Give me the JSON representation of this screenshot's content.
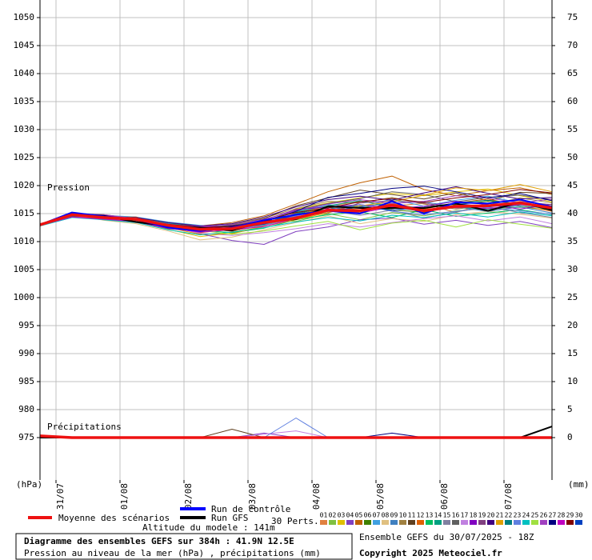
{
  "chart_data": {
    "type": "line",
    "title": "Diagramme des ensembles GEFS sur 384h : 41.9N 12.5E",
    "subtitle": "Pression au niveau de la mer (hPa) , précipitations (mm)",
    "run_info": "Ensemble GEFS du 30/07/2025 - 18Z",
    "copyright": "Copyright 2025 Meteociel.fr",
    "altitude": "Altitude du modele : 141m",
    "pressure_label": "Pression",
    "precip_label": "Précipitations",
    "y_unit": "(hPa)",
    "y2_unit": "(mm)",
    "perts_label": "30 Perts.",
    "grid": true,
    "x": [
      0,
      12,
      24,
      36,
      48,
      60,
      72,
      84,
      96,
      108,
      120,
      132,
      144,
      156,
      168,
      180,
      192
    ],
    "xlim": [
      0,
      192
    ],
    "xticks": [
      {
        "value": 6,
        "label": "31/07"
      },
      {
        "value": 30,
        "label": "01/08"
      },
      {
        "value": 54,
        "label": "02/08"
      },
      {
        "value": 78,
        "label": "03/08"
      },
      {
        "value": 102,
        "label": "04/08"
      },
      {
        "value": 126,
        "label": "05/08"
      },
      {
        "value": 150,
        "label": "06/08"
      },
      {
        "value": 174,
        "label": "07/08"
      }
    ],
    "ylim": [
      967.43,
      1053.14
    ],
    "yticks": [
      975,
      980,
      985,
      990,
      995,
      1000,
      1005,
      1010,
      1015,
      1020,
      1025,
      1030,
      1035,
      1040,
      1045,
      1050
    ],
    "y2lim": [
      -7.57,
      78.14
    ],
    "y2ticks": [
      0,
      5,
      10,
      15,
      20,
      25,
      30,
      35,
      40,
      45,
      50,
      55,
      60,
      65,
      70,
      75
    ],
    "series": [
      {
        "name": "01",
        "color": "#e08040",
        "width": 1,
        "values": [
          1013,
          1014.5,
          1014,
          1014.2,
          1013.4,
          1012.6,
          1011.8,
          1012.9,
          1015.1,
          1016.3,
          1017.2,
          1016.4,
          1016.8,
          1015.2,
          1016.9,
          1017.3,
          1016.4
        ]
      },
      {
        "name": "02",
        "color": "#80c040",
        "width": 1,
        "values": [
          1012.8,
          1014.9,
          1014.6,
          1013.7,
          1012.5,
          1011.7,
          1012.9,
          1013.8,
          1013.6,
          1015,
          1013.9,
          1015.2,
          1014.6,
          1015.5,
          1015.9,
          1016.1,
          1015.7
        ]
      },
      {
        "name": "03",
        "color": "#e0c000",
        "width": 1,
        "values": [
          1013.1,
          1015,
          1014.2,
          1013.8,
          1012.2,
          1010.9,
          1011.5,
          1012.8,
          1015.8,
          1016.9,
          1017.8,
          1018.6,
          1018.2,
          1018.9,
          1019.4,
          1018.2,
          1017.1
        ]
      },
      {
        "name": "04",
        "color": "#8040c0",
        "width": 1,
        "values": [
          1013,
          1014.6,
          1013.9,
          1013.5,
          1012.9,
          1011.4,
          1010.2,
          1009.5,
          1011.8,
          1012.6,
          1013.9,
          1014.2,
          1013.1,
          1013.8,
          1012.9,
          1013.6,
          1012.5
        ],
        "precip": [
          0,
          0,
          0,
          0,
          0,
          0,
          0,
          0.8,
          0,
          0,
          0,
          0,
          0,
          0,
          0,
          0,
          0
        ]
      },
      {
        "name": "05",
        "color": "#c06000",
        "width": 1,
        "values": [
          1013.2,
          1014.7,
          1014.5,
          1014.3,
          1013.1,
          1012.8,
          1013.4,
          1014.6,
          1016.7,
          1018.9,
          1020.5,
          1021.7,
          1019.3,
          1018.2,
          1019.1,
          1019.6,
          1018.4
        ]
      },
      {
        "name": "06",
        "color": "#408000",
        "width": 1,
        "values": [
          1012.9,
          1014.4,
          1014.1,
          1013.6,
          1012.6,
          1012.1,
          1012.6,
          1013.2,
          1014.9,
          1015.8,
          1016.4,
          1015.7,
          1015.2,
          1016.6,
          1017.2,
          1016.8,
          1016.3
        ]
      },
      {
        "name": "07",
        "color": "#40a0e0",
        "width": 1,
        "values": [
          1013,
          1015.1,
          1014.7,
          1014.4,
          1013.5,
          1012.9,
          1012.4,
          1013.5,
          1015.4,
          1016.6,
          1016.1,
          1017.6,
          1016.3,
          1017.4,
          1018.1,
          1016.9,
          1015.8
        ]
      },
      {
        "name": "08",
        "color": "#e0c080",
        "width": 1,
        "values": [
          1013.1,
          1014.8,
          1013.8,
          1013.2,
          1011.9,
          1010.3,
          1010.8,
          1012.1,
          1013.4,
          1014.6,
          1013.2,
          1014.1,
          1013.6,
          1014.8,
          1015.4,
          1014.9,
          1014.2
        ]
      },
      {
        "name": "09",
        "color": "#4080c0",
        "width": 1,
        "values": [
          1012.8,
          1014.3,
          1014.4,
          1013.9,
          1013,
          1012.4,
          1012.1,
          1013,
          1014.4,
          1015.2,
          1016.2,
          1016.9,
          1017.1,
          1016.2,
          1015.4,
          1016.2,
          1015.1
        ]
      },
      {
        "name": "10",
        "color": "#a08040",
        "width": 1,
        "values": [
          1013,
          1014.9,
          1014.8,
          1014.1,
          1012.7,
          1012.3,
          1013.1,
          1014.2,
          1015.9,
          1017.2,
          1016.9,
          1017.9,
          1016.7,
          1015.8,
          1016.5,
          1017.8,
          1016.9
        ]
      },
      {
        "name": "11",
        "color": "#604020",
        "width": 1,
        "values": [
          1013.1,
          1014.6,
          1014.2,
          1013.9,
          1013.2,
          1012.7,
          1012.9,
          1014.1,
          1016.4,
          1017.8,
          1019.2,
          1018.4,
          1017.6,
          1018.7,
          1017.3,
          1018.8,
          1018.6
        ],
        "precip": [
          0,
          0,
          0,
          0,
          0,
          0,
          1.5,
          0,
          0,
          0,
          0,
          0,
          0,
          0,
          0,
          0,
          0
        ]
      },
      {
        "name": "12",
        "color": "#e06000",
        "width": 1,
        "values": [
          1012.9,
          1015.2,
          1014.3,
          1014.4,
          1012.8,
          1011.6,
          1012.2,
          1013.3,
          1014.7,
          1016.1,
          1015.7,
          1016.8,
          1015.8,
          1016.9,
          1017.6,
          1016.4,
          1015.4
        ]
      },
      {
        "name": "13",
        "color": "#00c060",
        "width": 1,
        "values": [
          1013,
          1014.7,
          1014,
          1013.7,
          1012.4,
          1012,
          1011.6,
          1012.4,
          1013.9,
          1014.8,
          1015.3,
          1014.3,
          1015.7,
          1014.5,
          1015.1,
          1015.7,
          1014.8
        ]
      },
      {
        "name": "14",
        "color": "#00a080",
        "width": 1,
        "values": [
          1013.1,
          1014.5,
          1014.6,
          1014,
          1013.3,
          1012.5,
          1012.8,
          1013.7,
          1015.3,
          1016.4,
          1017.3,
          1016.1,
          1015.4,
          1016.1,
          1015.8,
          1016.4,
          1015.9
        ]
      },
      {
        "name": "15",
        "color": "#8080a0",
        "width": 1,
        "values": [
          1012.8,
          1014.8,
          1014.1,
          1013.6,
          1012.6,
          1011.9,
          1012.3,
          1012.9,
          1014.2,
          1015.5,
          1014.7,
          1015.6,
          1014.2,
          1015.3,
          1016.2,
          1015.2,
          1014.3
        ]
      },
      {
        "name": "16",
        "color": "#606060",
        "width": 1,
        "values": [
          1013,
          1015,
          1014.5,
          1014.2,
          1013,
          1012.3,
          1011.9,
          1013.6,
          1015.6,
          1016.8,
          1017.7,
          1018.9,
          1018.4,
          1017.1,
          1017.9,
          1018.3,
          1017.5
        ]
      },
      {
        "name": "17",
        "color": "#c080e0",
        "width": 1,
        "values": [
          1013.2,
          1014.4,
          1014.3,
          1013.8,
          1012.7,
          1011.5,
          1011.1,
          1011.6,
          1012.3,
          1013.2,
          1012.6,
          1013.4,
          1014.1,
          1014.6,
          1013.7,
          1014.4,
          1013.2
        ],
        "precip": [
          0,
          0,
          0,
          0,
          0,
          0,
          0,
          0.6,
          1.2,
          0,
          0,
          0,
          0,
          0,
          0,
          0,
          0
        ]
      },
      {
        "name": "18",
        "color": "#8000c0",
        "width": 1,
        "values": [
          1012.9,
          1014.6,
          1014.7,
          1014.1,
          1013.1,
          1012.6,
          1012.7,
          1013.9,
          1015.7,
          1016.2,
          1016.6,
          1015.9,
          1016.3,
          1017.2,
          1016.6,
          1015.8,
          1016.7
        ]
      },
      {
        "name": "19",
        "color": "#804080",
        "width": 1,
        "values": [
          1013,
          1014.9,
          1014,
          1013.5,
          1012.3,
          1011.8,
          1012.4,
          1013.2,
          1014.5,
          1015.1,
          1016.9,
          1017.3,
          1016.9,
          1016,
          1016.3,
          1017.1,
          1016.6
        ]
      },
      {
        "name": "20",
        "color": "#400080",
        "width": 1,
        "values": [
          1013.1,
          1014.7,
          1014.4,
          1014.3,
          1013.4,
          1012.8,
          1013.2,
          1014.4,
          1016.2,
          1017.5,
          1018.1,
          1017.4,
          1018.7,
          1019.8,
          1018.6,
          1017.6,
          1017.9
        ]
      },
      {
        "name": "21",
        "color": "#e0a000",
        "width": 1,
        "values": [
          1012.9,
          1015.1,
          1014.2,
          1013.7,
          1012.5,
          1011.3,
          1011.4,
          1012.7,
          1013.9,
          1015.2,
          1016.4,
          1017.1,
          1018.3,
          1019.6,
          1019.1,
          1020.2,
          1018.9
        ]
      },
      {
        "name": "22",
        "color": "#008080",
        "width": 1,
        "values": [
          1013,
          1014.5,
          1014.6,
          1013.9,
          1012.8,
          1012.1,
          1012.5,
          1013.3,
          1015,
          1016.1,
          1015.4,
          1016.5,
          1015.9,
          1016.9,
          1017.4,
          1016.7,
          1015.9
        ]
      },
      {
        "name": "23",
        "color": "#6080e0",
        "width": 1,
        "values": [
          1013.1,
          1014.8,
          1014.1,
          1014,
          1013.2,
          1012.4,
          1012,
          1013.1,
          1014.6,
          1015.7,
          1016.6,
          1015.4,
          1014.8,
          1015.4,
          1016.1,
          1015.5,
          1014.9
        ],
        "precip": [
          0,
          0,
          0,
          0,
          0,
          0,
          0,
          0,
          3.5,
          0,
          0,
          0,
          0,
          0,
          0,
          0,
          0
        ]
      },
      {
        "name": "24",
        "color": "#00c0c0",
        "width": 1,
        "values": [
          1012.8,
          1014.3,
          1013.9,
          1013.4,
          1012.1,
          1011.2,
          1011.7,
          1012.5,
          1013.5,
          1014.3,
          1013.7,
          1014.7,
          1014.3,
          1015.1,
          1014.4,
          1015.3,
          1014.6
        ]
      },
      {
        "name": "25",
        "color": "#a0e040",
        "width": 1,
        "values": [
          1013,
          1014.6,
          1014.5,
          1014.2,
          1012.9,
          1012,
          1011.3,
          1011.9,
          1012.8,
          1013.6,
          1012.1,
          1013.3,
          1013.8,
          1012.6,
          1013.9,
          1013.1,
          1012.4
        ]
      },
      {
        "name": "26",
        "color": "#a040c0",
        "width": 1,
        "values": [
          1013.1,
          1015,
          1014.8,
          1014.1,
          1013,
          1012.7,
          1013,
          1014,
          1015.5,
          1016.7,
          1017.5,
          1016.8,
          1017.2,
          1018.2,
          1017.8,
          1016.9,
          1017.6
        ]
      },
      {
        "name": "27",
        "color": "#000080",
        "width": 1,
        "values": [
          1013,
          1014.7,
          1014.2,
          1013.8,
          1012.6,
          1012.2,
          1012.8,
          1013.5,
          1015.4,
          1017.9,
          1018.6,
          1019.5,
          1019.9,
          1018.9,
          1017.8,
          1018.6,
          1017.3
        ],
        "precip": [
          0,
          0,
          0,
          0,
          0,
          0,
          0,
          0,
          0,
          0,
          0,
          0.8,
          0,
          0,
          0,
          0,
          0
        ]
      },
      {
        "name": "28",
        "color": "#c000c0",
        "width": 1,
        "values": [
          1012.9,
          1014.4,
          1014,
          1013.6,
          1012.4,
          1011.7,
          1012.1,
          1012.7,
          1014.1,
          1015.9,
          1015.1,
          1016.2,
          1015.6,
          1016.4,
          1015.9,
          1016.6,
          1016.1
        ]
      },
      {
        "name": "29",
        "color": "#800000",
        "width": 1,
        "values": [
          1013,
          1014.9,
          1014.4,
          1014,
          1013.1,
          1012.5,
          1012.7,
          1013.8,
          1015.2,
          1016,
          1017.1,
          1017.7,
          1017,
          1017.8,
          1018.4,
          1019.3,
          1018.7
        ]
      },
      {
        "name": "30",
        "color": "#0040c0",
        "width": 1,
        "values": [
          1013.1,
          1014.6,
          1014.3,
          1013.9,
          1012.7,
          1012,
          1012.3,
          1013.1,
          1014.8,
          1015.4,
          1016.2,
          1015.6,
          1016.1,
          1016.8,
          1016.2,
          1016.7,
          1016.3
        ]
      },
      {
        "name": "Run GFS",
        "color": "#000000",
        "width": 2,
        "values": [
          1013,
          1015,
          1014.6,
          1013.5,
          1012.8,
          1012.5,
          1012,
          1013.6,
          1014,
          1016.3,
          1016,
          1016,
          1016,
          1016.8,
          1015.5,
          1017,
          1015.6
        ],
        "precip": [
          0,
          0,
          0,
          0,
          0,
          0,
          0,
          0,
          0,
          0,
          0,
          0,
          0,
          0,
          0,
          0,
          2
        ]
      },
      {
        "name": "Run de contrôle",
        "color": "#0000ff",
        "width": 2,
        "values": [
          1013,
          1015.2,
          1014.5,
          1014,
          1012.5,
          1011.9,
          1012.5,
          1013.8,
          1014.8,
          1015.5,
          1015,
          1017.2,
          1015,
          1017,
          1016.8,
          1017.5,
          1016.2
        ]
      },
      {
        "name": "Moyenne des scénarios",
        "color": "#ee1111",
        "width": 3.5,
        "values": [
          1013,
          1014.8,
          1014.3,
          1014,
          1012.9,
          1012.2,
          1012.3,
          1013.4,
          1014.2,
          1015.6,
          1015.5,
          1016.5,
          1015.5,
          1016.3,
          1016.4,
          1016.9,
          1016
        ],
        "precip": [
          0.3,
          0,
          0,
          0,
          0,
          0,
          0,
          0,
          0,
          0,
          0,
          0,
          0,
          0,
          0,
          0,
          0
        ]
      }
    ]
  }
}
